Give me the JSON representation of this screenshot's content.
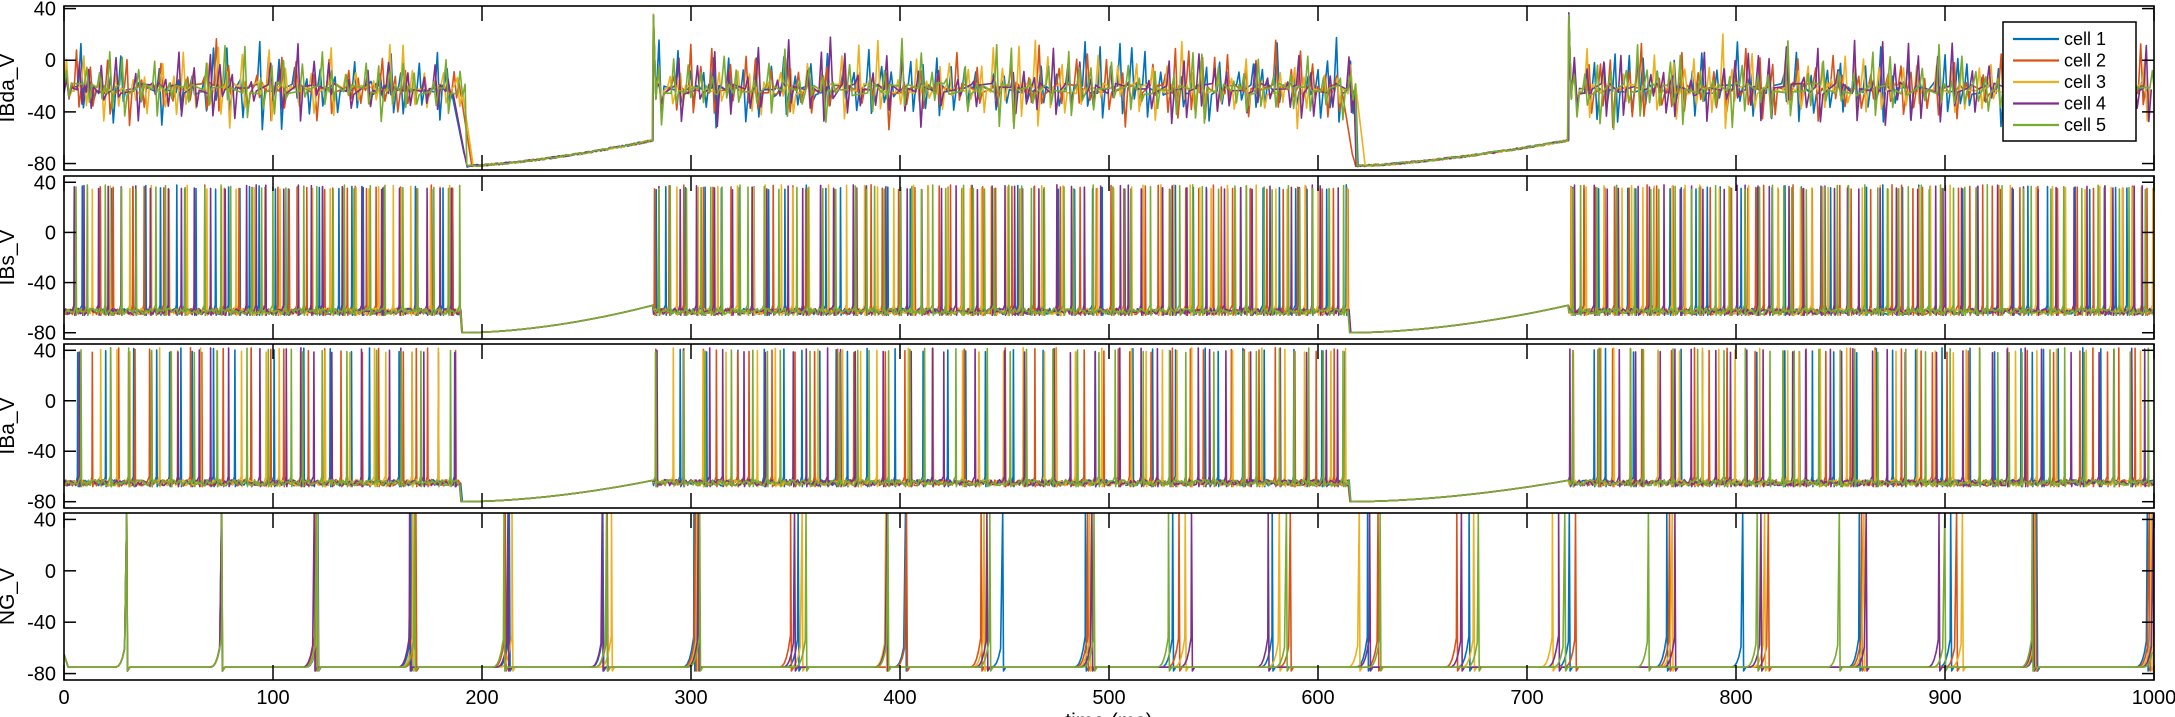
{
  "chart_data": {
    "type": "line",
    "layout": "4 stacked panels sharing x axis",
    "xlabel": "time (ms)",
    "xlim": [
      0,
      1000
    ],
    "xticks": [
      0,
      100,
      200,
      300,
      400,
      500,
      600,
      700,
      800,
      900,
      1000
    ],
    "legend": {
      "placement": "top-right of first panel",
      "entries": [
        {
          "name": "cell 1",
          "color": "#0072BD"
        },
        {
          "name": "cell 2",
          "color": "#D95319"
        },
        {
          "name": "cell 3",
          "color": "#EDB120"
        },
        {
          "name": "cell 4",
          "color": "#7E2F8E"
        },
        {
          "name": "cell 5",
          "color": "#77AC30"
        }
      ]
    },
    "panels": [
      {
        "ylabel": "IBda_V",
        "ylim": [
          -85,
          42
        ],
        "yticks": [
          40,
          0,
          -40,
          -80
        ],
        "pattern": "dendritic bursting",
        "baseline_mV": -22,
        "burst_amplitude_mV": [
          20,
          60
        ],
        "burst_interval_ms": 7,
        "silent_periods_ms": [
          [
            190,
            282
          ],
          [
            615,
            720
          ]
        ],
        "silent_start_mV": -82,
        "silent_end_mV": -62,
        "rebound_peak_mV": 37
      },
      {
        "ylabel": "IBs_V",
        "ylim": [
          -85,
          45
        ],
        "yticks": [
          40,
          0,
          -40,
          -80
        ],
        "pattern": "dense somatic spiking",
        "rest_mV": -63,
        "peak_mV": 38,
        "mean_isi_ms": 6,
        "silent_periods_ms": [
          [
            190,
            282
          ],
          [
            615,
            720
          ]
        ],
        "silent_start_mV": -80,
        "silent_end_mV": -58
      },
      {
        "ylabel": "IBa_V",
        "ylim": [
          -85,
          45
        ],
        "yticks": [
          40,
          0,
          -40,
          -80
        ],
        "pattern": "axonal spiking",
        "rest_mV": -65,
        "peak_mV": 42,
        "mean_isi_ms": 9,
        "silent_periods_ms": [
          [
            190,
            282
          ],
          [
            615,
            720
          ]
        ],
        "silent_start_mV": -80,
        "silent_end_mV": -63
      },
      {
        "ylabel": "NG_V",
        "ylim": [
          -85,
          45
        ],
        "yticks": [
          40,
          0,
          -40,
          -80
        ],
        "pattern": "slow periodic spiking",
        "rest_mV": -75,
        "peak_mV": 45,
        "spike_times_ms": [
          30,
          76,
          121,
          167,
          212,
          259,
          305,
          352,
          398,
          444,
          489,
          534,
          580,
          626,
          672,
          718,
          764,
          810,
          856,
          902,
          948,
          994
        ]
      }
    ]
  }
}
